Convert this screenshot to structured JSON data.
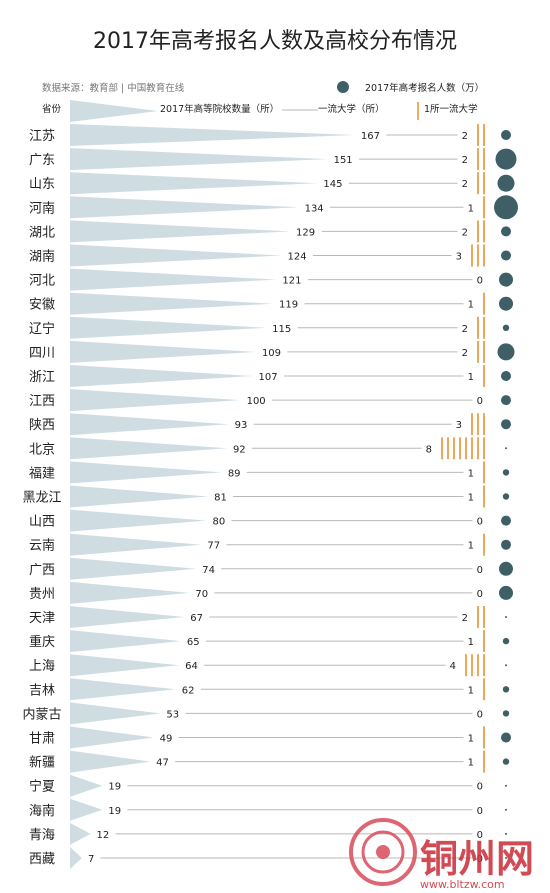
{
  "chart_data": {
    "type": "table",
    "title": "2017年高考报名人数及高校分布情况",
    "source": "数据来源：教育部 | 中国教育在线",
    "legend": {
      "bubble": "2017年高考报名人数（万）",
      "province_col": "省份",
      "colleges": "2017年高等院校数量（所）",
      "first_class": "一流大学（所）",
      "tick": "1所一流大学"
    },
    "colors": {
      "triangle": "#cfdde3",
      "bubble": "#3f5f66",
      "tick": "#e8912f",
      "line": "#b8b8b8"
    },
    "rows": [
      {
        "province": "江苏",
        "colleges": 167,
        "first_class": 2,
        "bubble": "small"
      },
      {
        "province": "广东",
        "colleges": 151,
        "first_class": 2,
        "bubble": "very-large"
      },
      {
        "province": "山东",
        "colleges": 145,
        "first_class": 2,
        "bubble": "large"
      },
      {
        "province": "河南",
        "colleges": 134,
        "first_class": 1,
        "bubble": "largest"
      },
      {
        "province": "湖北",
        "colleges": 129,
        "first_class": 2,
        "bubble": "small"
      },
      {
        "province": "湖南",
        "colleges": 124,
        "first_class": 3,
        "bubble": "small"
      },
      {
        "province": "河北",
        "colleges": 121,
        "first_class": 0,
        "bubble": "medium"
      },
      {
        "province": "安徽",
        "colleges": 119,
        "first_class": 1,
        "bubble": "medium"
      },
      {
        "province": "辽宁",
        "colleges": 115,
        "first_class": 2,
        "bubble": "tiny"
      },
      {
        "province": "四川",
        "colleges": 109,
        "first_class": 2,
        "bubble": "large"
      },
      {
        "province": "浙江",
        "colleges": 107,
        "first_class": 1,
        "bubble": "small"
      },
      {
        "province": "江西",
        "colleges": 100,
        "first_class": 0,
        "bubble": "small"
      },
      {
        "province": "陕西",
        "colleges": 93,
        "first_class": 3,
        "bubble": "small"
      },
      {
        "province": "北京",
        "colleges": 92,
        "first_class": 8,
        "bubble": "dot"
      },
      {
        "province": "福建",
        "colleges": 89,
        "first_class": 1,
        "bubble": "tiny"
      },
      {
        "province": "黑龙江",
        "colleges": 81,
        "first_class": 1,
        "bubble": "tiny"
      },
      {
        "province": "山西",
        "colleges": 80,
        "first_class": 0,
        "bubble": "small"
      },
      {
        "province": "云南",
        "colleges": 77,
        "first_class": 1,
        "bubble": "small"
      },
      {
        "province": "广西",
        "colleges": 74,
        "first_class": 0,
        "bubble": "medium"
      },
      {
        "province": "贵州",
        "colleges": 70,
        "first_class": 0,
        "bubble": "medium"
      },
      {
        "province": "天津",
        "colleges": 67,
        "first_class": 2,
        "bubble": "dot"
      },
      {
        "province": "重庆",
        "colleges": 65,
        "first_class": 1,
        "bubble": "tiny"
      },
      {
        "province": "上海",
        "colleges": 64,
        "first_class": 4,
        "bubble": "dot"
      },
      {
        "province": "吉林",
        "colleges": 62,
        "first_class": 1,
        "bubble": "tiny"
      },
      {
        "province": "内蒙古",
        "colleges": 53,
        "first_class": 0,
        "bubble": "tiny"
      },
      {
        "province": "甘肃",
        "colleges": 49,
        "first_class": 1,
        "bubble": "small"
      },
      {
        "province": "新疆",
        "colleges": 47,
        "first_class": 1,
        "bubble": "tiny"
      },
      {
        "province": "宁夏",
        "colleges": 19,
        "first_class": 0,
        "bubble": "dot"
      },
      {
        "province": "海南",
        "colleges": 19,
        "first_class": 0,
        "bubble": "dot"
      },
      {
        "province": "青海",
        "colleges": 12,
        "first_class": 0,
        "bubble": "dot"
      },
      {
        "province": "西藏",
        "colleges": 7,
        "first_class": 0,
        "bubble": "dot"
      }
    ]
  },
  "watermark": {
    "name": "铜州网",
    "url": "www.bltzw.com"
  }
}
